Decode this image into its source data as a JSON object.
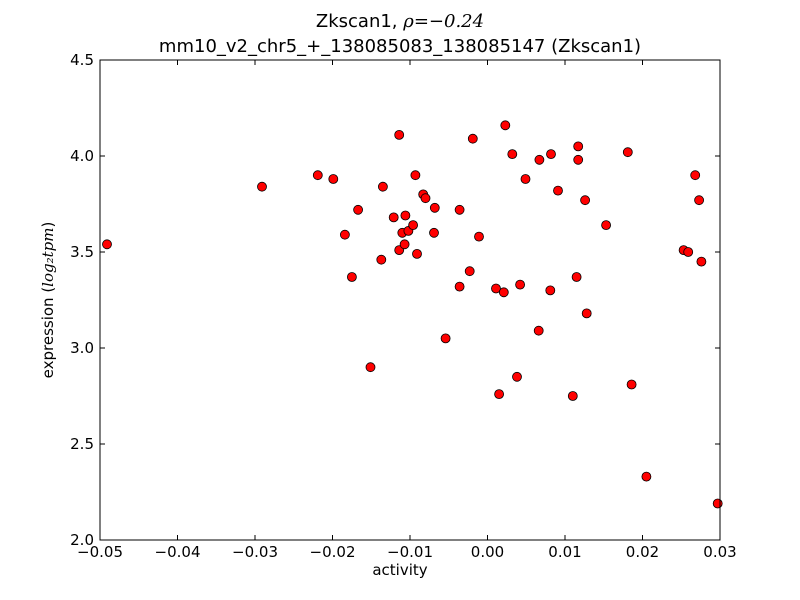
{
  "title": {
    "line1_prefix": "Zkscan1, ",
    "line1_math": "ρ=−0.24",
    "line2": "mm10_v2_chr5_+_138085083_138085147 (Zkscan1)"
  },
  "chart_data": {
    "type": "scatter",
    "xlabel": "activity",
    "ylabel_prefix": "expression (",
    "ylabel_math": "log₂tpm",
    "ylabel_suffix": ")",
    "xlim": [
      -0.05,
      0.03
    ],
    "ylim": [
      2.0,
      4.5
    ],
    "x_ticks": [
      -0.05,
      -0.04,
      -0.03,
      -0.02,
      -0.01,
      0.0,
      0.01,
      0.02,
      0.03
    ],
    "x_tick_labels": [
      "−0.05",
      "−0.04",
      "−0.03",
      "−0.02",
      "−0.01",
      "0.00",
      "0.01",
      "0.02",
      "0.03"
    ],
    "y_ticks": [
      2.0,
      2.5,
      3.0,
      3.5,
      4.0,
      4.5
    ],
    "y_tick_labels": [
      "2.0",
      "2.5",
      "3.0",
      "3.5",
      "4.0",
      "4.5"
    ],
    "marker_color": "#ff0000",
    "marker_edge": "#000000",
    "grid": false,
    "points": [
      {
        "x": -0.0491,
        "y": 3.54
      },
      {
        "x": -0.0291,
        "y": 3.84
      },
      {
        "x": -0.0219,
        "y": 3.9
      },
      {
        "x": -0.0199,
        "y": 3.88
      },
      {
        "x": -0.0184,
        "y": 3.59
      },
      {
        "x": -0.0175,
        "y": 3.37
      },
      {
        "x": -0.0167,
        "y": 3.72
      },
      {
        "x": -0.0151,
        "y": 2.9
      },
      {
        "x": -0.0137,
        "y": 3.46
      },
      {
        "x": -0.0135,
        "y": 3.84
      },
      {
        "x": -0.0121,
        "y": 3.68
      },
      {
        "x": -0.0114,
        "y": 4.11
      },
      {
        "x": -0.0114,
        "y": 3.51
      },
      {
        "x": -0.011,
        "y": 3.6
      },
      {
        "x": -0.0107,
        "y": 3.54
      },
      {
        "x": -0.0106,
        "y": 3.69
      },
      {
        "x": -0.0102,
        "y": 3.61
      },
      {
        "x": -0.0096,
        "y": 3.64
      },
      {
        "x": -0.0093,
        "y": 3.9
      },
      {
        "x": -0.0091,
        "y": 3.49
      },
      {
        "x": -0.0083,
        "y": 3.8
      },
      {
        "x": -0.008,
        "y": 3.78
      },
      {
        "x": -0.0069,
        "y": 3.6
      },
      {
        "x": -0.0068,
        "y": 3.73
      },
      {
        "x": -0.0054,
        "y": 3.05
      },
      {
        "x": -0.0036,
        "y": 3.72
      },
      {
        "x": -0.0036,
        "y": 3.32
      },
      {
        "x": -0.0023,
        "y": 3.4
      },
      {
        "x": -0.0019,
        "y": 4.09
      },
      {
        "x": -0.0011,
        "y": 3.58
      },
      {
        "x": 0.0011,
        "y": 3.31
      },
      {
        "x": 0.0015,
        "y": 2.76
      },
      {
        "x": 0.0021,
        "y": 3.29
      },
      {
        "x": 0.0023,
        "y": 4.16
      },
      {
        "x": 0.0032,
        "y": 4.01
      },
      {
        "x": 0.0038,
        "y": 2.85
      },
      {
        "x": 0.0042,
        "y": 3.33
      },
      {
        "x": 0.0049,
        "y": 3.88
      },
      {
        "x": 0.0066,
        "y": 3.09
      },
      {
        "x": 0.0067,
        "y": 3.98
      },
      {
        "x": 0.0081,
        "y": 3.3
      },
      {
        "x": 0.0082,
        "y": 4.01
      },
      {
        "x": 0.0091,
        "y": 3.82
      },
      {
        "x": 0.011,
        "y": 2.75
      },
      {
        "x": 0.0115,
        "y": 3.37
      },
      {
        "x": 0.0117,
        "y": 4.05
      },
      {
        "x": 0.0117,
        "y": 3.98
      },
      {
        "x": 0.0126,
        "y": 3.77
      },
      {
        "x": 0.0128,
        "y": 3.18
      },
      {
        "x": 0.0153,
        "y": 3.64
      },
      {
        "x": 0.0181,
        "y": 4.02
      },
      {
        "x": 0.0186,
        "y": 2.81
      },
      {
        "x": 0.0205,
        "y": 2.33
      },
      {
        "x": 0.0253,
        "y": 3.51
      },
      {
        "x": 0.0259,
        "y": 3.5
      },
      {
        "x": 0.0268,
        "y": 3.9
      },
      {
        "x": 0.0273,
        "y": 3.77
      },
      {
        "x": 0.0276,
        "y": 3.45
      },
      {
        "x": 0.0297,
        "y": 2.19
      }
    ]
  }
}
